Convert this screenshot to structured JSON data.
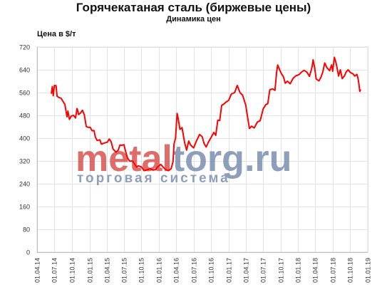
{
  "header": {
    "title": "Горячекатаная сталь (биржевые цены)",
    "subtitle": "Динамика цен"
  },
  "watermark": {
    "logo_part1": "metal",
    "logo_part2": "torg",
    "logo_part3": ".ru",
    "tagline": "торговая  система",
    "color_red": "#d9534f",
    "color_blue": "#7b8fb0"
  },
  "chart_data": {
    "type": "line",
    "title": "Горячекатаная сталь (биржевые цены)",
    "subtitle": "Динамика цен",
    "ylabel": "Цена в $/т",
    "xlabel": "",
    "ylim": [
      0,
      720
    ],
    "y_ticks": [
      0,
      80,
      160,
      240,
      320,
      400,
      480,
      560,
      640,
      720
    ],
    "x_tick_labels": [
      "01.04.14",
      "01.07.14",
      "01.10.14",
      "01.01.15",
      "01.04.15",
      "01.07.15",
      "01.10.15",
      "01.01.16",
      "01.04.16",
      "01.07.16",
      "01.10.16",
      "01.01.17",
      "01.04.17",
      "01.07.17",
      "01.10.17",
      "01.01.18",
      "01.04.18",
      "01.07.18",
      "01.10.18",
      "01.01.19"
    ],
    "grid": true,
    "line_color": "#ff0000",
    "series": [
      {
        "values": [
          [
            "2014-06-15",
            556
          ],
          [
            "2014-06-20",
            581
          ],
          [
            "2014-06-25",
            549
          ],
          [
            "2014-07-01",
            585
          ],
          [
            "2014-07-10",
            584
          ],
          [
            "2014-07-15",
            547
          ],
          [
            "2014-07-25",
            543
          ],
          [
            "2014-08-05",
            540
          ],
          [
            "2014-08-15",
            529
          ],
          [
            "2014-08-25",
            519
          ],
          [
            "2014-09-05",
            475
          ],
          [
            "2014-09-10",
            495
          ],
          [
            "2014-09-18",
            466
          ],
          [
            "2014-09-28",
            478
          ],
          [
            "2014-10-10",
            480
          ],
          [
            "2014-10-20",
            471
          ],
          [
            "2014-10-28",
            504
          ],
          [
            "2014-11-01",
            496
          ],
          [
            "2014-11-05",
            483
          ],
          [
            "2014-11-15",
            488
          ],
          [
            "2014-11-25",
            498
          ],
          [
            "2014-12-05",
            482
          ],
          [
            "2014-12-15",
            441
          ],
          [
            "2014-12-25",
            438
          ],
          [
            "2015-01-05",
            438
          ],
          [
            "2015-01-15",
            426
          ],
          [
            "2015-01-25",
            427
          ],
          [
            "2015-02-01",
            404
          ],
          [
            "2015-02-10",
            392
          ],
          [
            "2015-02-25",
            394
          ],
          [
            "2015-03-05",
            379
          ],
          [
            "2015-03-20",
            383
          ],
          [
            "2015-04-05",
            386
          ],
          [
            "2015-04-15",
            397
          ],
          [
            "2015-04-25",
            387
          ],
          [
            "2015-05-05",
            362
          ],
          [
            "2015-05-20",
            351
          ],
          [
            "2015-06-01",
            358
          ],
          [
            "2015-06-10",
            376
          ],
          [
            "2015-06-20",
            375
          ],
          [
            "2015-07-01",
            377
          ],
          [
            "2015-07-10",
            353
          ],
          [
            "2015-07-20",
            330
          ],
          [
            "2015-08-01",
            319
          ],
          [
            "2015-08-15",
            320
          ],
          [
            "2015-08-25",
            310
          ],
          [
            "2015-09-05",
            299
          ],
          [
            "2015-09-15",
            303
          ],
          [
            "2015-10-01",
            299
          ],
          [
            "2015-10-15",
            286
          ],
          [
            "2015-11-01",
            289
          ],
          [
            "2015-11-15",
            293
          ],
          [
            "2015-12-01",
            288
          ],
          [
            "2015-12-15",
            290
          ],
          [
            "2015-12-25",
            299
          ],
          [
            "2016-01-10",
            308
          ],
          [
            "2016-01-25",
            297
          ],
          [
            "2016-02-05",
            290
          ],
          [
            "2016-02-20",
            286
          ],
          [
            "2016-03-05",
            293
          ],
          [
            "2016-03-15",
            318
          ],
          [
            "2016-03-20",
            380
          ],
          [
            "2016-03-28",
            400
          ],
          [
            "2016-04-05",
            487
          ],
          [
            "2016-04-10",
            472
          ],
          [
            "2016-04-20",
            431
          ],
          [
            "2016-05-01",
            437
          ],
          [
            "2016-05-15",
            384
          ],
          [
            "2016-05-25",
            358
          ],
          [
            "2016-06-05",
            390
          ],
          [
            "2016-06-15",
            376
          ],
          [
            "2016-07-01",
            366
          ],
          [
            "2016-07-15",
            389
          ],
          [
            "2016-08-01",
            413
          ],
          [
            "2016-08-15",
            405
          ],
          [
            "2016-08-25",
            381
          ],
          [
            "2016-09-05",
            369
          ],
          [
            "2016-09-15",
            384
          ],
          [
            "2016-10-01",
            403
          ],
          [
            "2016-10-15",
            420
          ],
          [
            "2016-10-25",
            410
          ],
          [
            "2016-11-05",
            463
          ],
          [
            "2016-11-15",
            462
          ],
          [
            "2016-11-25",
            515
          ],
          [
            "2016-12-05",
            519
          ],
          [
            "2016-12-15",
            525
          ],
          [
            "2017-01-01",
            533
          ],
          [
            "2017-01-15",
            555
          ],
          [
            "2017-02-01",
            560
          ],
          [
            "2017-02-15",
            585
          ],
          [
            "2017-03-01",
            560
          ],
          [
            "2017-03-15",
            551
          ],
          [
            "2017-04-01",
            515
          ],
          [
            "2017-04-10",
            475
          ],
          [
            "2017-04-20",
            434
          ],
          [
            "2017-05-01",
            442
          ],
          [
            "2017-05-15",
            436
          ],
          [
            "2017-06-01",
            457
          ],
          [
            "2017-06-15",
            461
          ],
          [
            "2017-07-01",
            503
          ],
          [
            "2017-07-15",
            518
          ],
          [
            "2017-07-25",
            521
          ],
          [
            "2017-08-05",
            570
          ],
          [
            "2017-08-20",
            573
          ],
          [
            "2017-09-01",
            568
          ],
          [
            "2017-09-10",
            633
          ],
          [
            "2017-09-15",
            657
          ],
          [
            "2017-09-25",
            641
          ],
          [
            "2017-10-05",
            626
          ],
          [
            "2017-10-15",
            616
          ],
          [
            "2017-10-25",
            593
          ],
          [
            "2017-11-05",
            600
          ],
          [
            "2017-11-20",
            591
          ],
          [
            "2017-12-05",
            610
          ],
          [
            "2017-12-20",
            619
          ],
          [
            "2018-01-05",
            623
          ],
          [
            "2018-01-20",
            633
          ],
          [
            "2018-02-01",
            638
          ],
          [
            "2018-02-15",
            632
          ],
          [
            "2018-03-01",
            617
          ],
          [
            "2018-03-10",
            638
          ],
          [
            "2018-03-15",
            652
          ],
          [
            "2018-03-20",
            675
          ],
          [
            "2018-03-28",
            649
          ],
          [
            "2018-04-05",
            608
          ],
          [
            "2018-04-20",
            601
          ],
          [
            "2018-05-01",
            615
          ],
          [
            "2018-05-10",
            632
          ],
          [
            "2018-05-20",
            664
          ],
          [
            "2018-06-01",
            647
          ],
          [
            "2018-06-15",
            637
          ],
          [
            "2018-06-25",
            657
          ],
          [
            "2018-07-01",
            635
          ],
          [
            "2018-07-10",
            684
          ],
          [
            "2018-07-20",
            660
          ],
          [
            "2018-08-01",
            618
          ],
          [
            "2018-08-10",
            640
          ],
          [
            "2018-08-20",
            609
          ],
          [
            "2018-09-01",
            619
          ],
          [
            "2018-09-10",
            633
          ],
          [
            "2018-09-20",
            640
          ],
          [
            "2018-10-01",
            631
          ],
          [
            "2018-10-15",
            626
          ],
          [
            "2018-10-25",
            618
          ],
          [
            "2018-11-05",
            624
          ],
          [
            "2018-11-10",
            612
          ],
          [
            "2018-11-15",
            594
          ],
          [
            "2018-11-20",
            564
          ],
          [
            "2018-11-25",
            571
          ]
        ]
      }
    ]
  }
}
